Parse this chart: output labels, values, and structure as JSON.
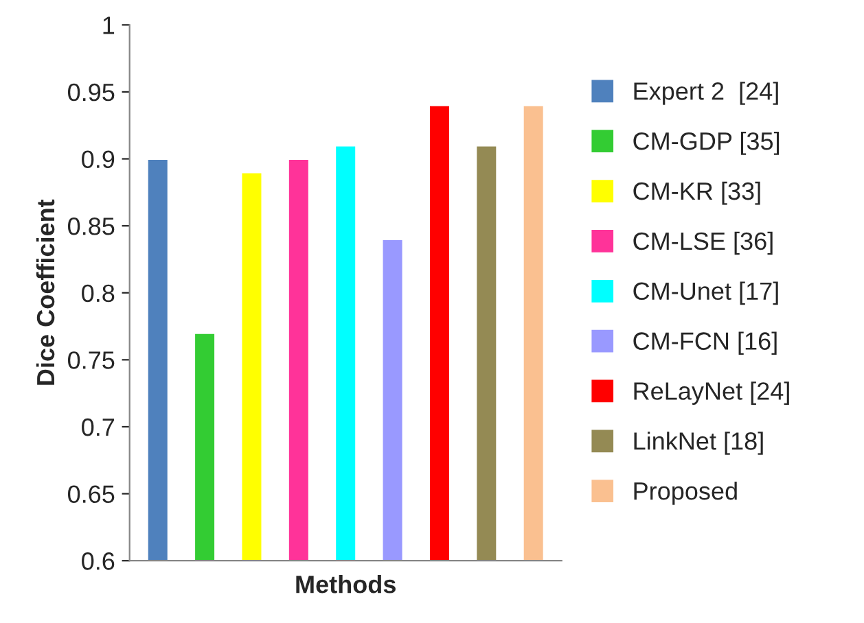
{
  "chart_data": {
    "type": "bar",
    "xlabel": "Methods",
    "ylabel": "Dice Coefficient",
    "categories": [
      null,
      null,
      null,
      null,
      null,
      null,
      null,
      null,
      null
    ],
    "series": [
      {
        "name": "Expert 2  [24]",
        "color": "#4f81bd",
        "values": [
          0.9,
          null,
          null,
          null,
          null,
          null,
          null,
          null,
          null
        ]
      },
      {
        "name": "CM-GDP [35]",
        "color": "#33cc33",
        "values": [
          null,
          0.77,
          null,
          null,
          null,
          null,
          null,
          null,
          null
        ]
      },
      {
        "name": "CM-KR [33]",
        "color": "#ffff00",
        "values": [
          null,
          null,
          0.89,
          null,
          null,
          null,
          null,
          null,
          null
        ]
      },
      {
        "name": "CM-LSE [36]",
        "color": "#ff3399",
        "values": [
          null,
          null,
          null,
          0.9,
          null,
          null,
          null,
          null,
          null
        ]
      },
      {
        "name": "CM-Unet [17]",
        "color": "#00ffff",
        "values": [
          null,
          null,
          null,
          null,
          0.91,
          null,
          null,
          null,
          null
        ]
      },
      {
        "name": "CM-FCN [16]",
        "color": "#9999ff",
        "values": [
          null,
          null,
          null,
          null,
          null,
          0.84,
          null,
          null,
          null
        ]
      },
      {
        "name": "ReLayNet [24]",
        "color": "#ff0000",
        "values": [
          null,
          null,
          null,
          null,
          null,
          null,
          0.94,
          null,
          null
        ]
      },
      {
        "name": "LinkNet [18]",
        "color": "#948a54",
        "values": [
          null,
          null,
          null,
          null,
          null,
          null,
          null,
          0.91,
          null
        ]
      },
      {
        "name": "Proposed",
        "color": "#fac090",
        "values": [
          null,
          null,
          null,
          null,
          null,
          null,
          null,
          null,
          0.94
        ]
      }
    ],
    "ylim": [
      0.6,
      1
    ],
    "yticks": [
      0.6,
      0.65,
      0.7,
      0.75,
      0.8,
      0.85,
      0.9,
      0.95,
      1
    ],
    "tick_labels": "y",
    "legend": "right"
  }
}
